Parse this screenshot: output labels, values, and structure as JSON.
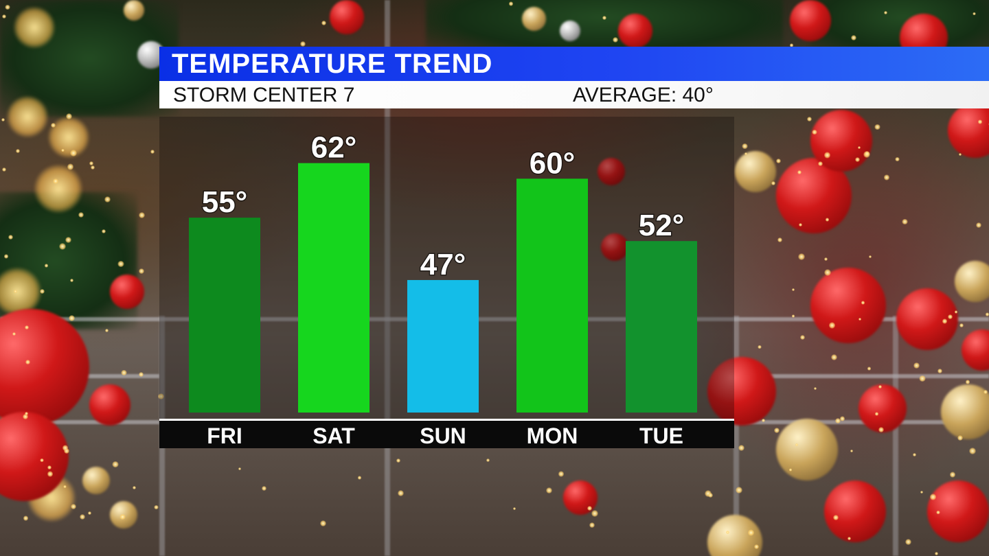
{
  "header": {
    "title": "TEMPERATURE TREND",
    "station": "STORM CENTER 7",
    "average_label": "AVERAGE: 40°"
  },
  "colors": {
    "title_bar": "#1a3ff0",
    "sub_bar": "#ffffff",
    "bar_warm_dark": "#0d8a1e",
    "bar_warm_bright": "#16d61e",
    "bar_cool": "#14bde8",
    "bar_tue": "#12922d",
    "day_strip": "#0a0a0a"
  },
  "chart_data": {
    "type": "bar",
    "categories": [
      "FRI",
      "SAT",
      "SUN",
      "MON",
      "TUE"
    ],
    "values": [
      55,
      62,
      47,
      60,
      52
    ],
    "value_labels": [
      "55°",
      "62°",
      "47°",
      "60°",
      "52°"
    ],
    "bar_colors": [
      "#0d8a1e",
      "#16d61e",
      "#14bde8",
      "#12c41a",
      "#12922d"
    ],
    "unit": "°",
    "title": "TEMPERATURE TREND",
    "xlabel": "",
    "ylabel": "",
    "legend": "none",
    "grid": false
  }
}
